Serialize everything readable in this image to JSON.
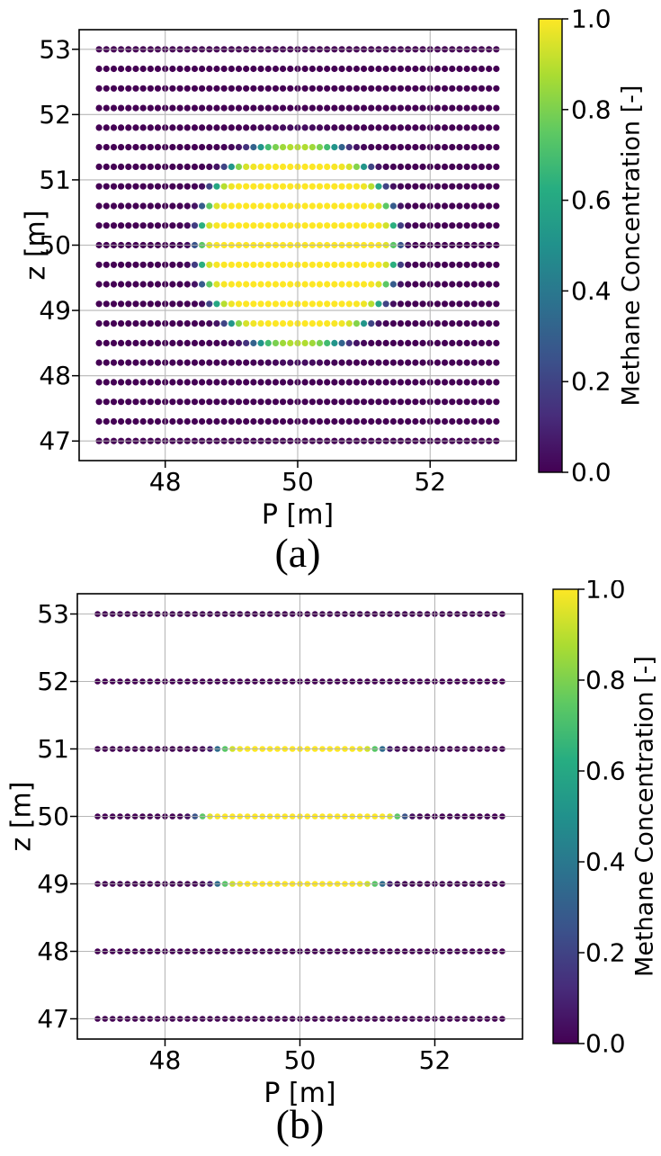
{
  "page": {
    "background": "#ffffff"
  },
  "colormap": {
    "name": "viridis",
    "stops": [
      {
        "t": 0.0,
        "color": "#440154"
      },
      {
        "t": 0.125,
        "color": "#472d7b"
      },
      {
        "t": 0.25,
        "color": "#3b528b"
      },
      {
        "t": 0.375,
        "color": "#2c728e"
      },
      {
        "t": 0.5,
        "color": "#21918c"
      },
      {
        "t": 0.625,
        "color": "#27ad81"
      },
      {
        "t": 0.75,
        "color": "#5ec962"
      },
      {
        "t": 0.875,
        "color": "#aadc32"
      },
      {
        "t": 1.0,
        "color": "#fde725"
      }
    ]
  },
  "chart_data": [
    {
      "id": "a",
      "type": "scatter",
      "caption": "(a)",
      "xlabel": "P [m]",
      "ylabel": "z [m]",
      "xlim": [
        46.7,
        53.3
      ],
      "ylim": [
        46.7,
        53.3
      ],
      "xtick_values": [
        48,
        50,
        52
      ],
      "xtick_labels": [
        "48",
        "50",
        "52"
      ],
      "ytick_values": [
        47,
        48,
        49,
        50,
        51,
        52,
        53
      ],
      "ytick_labels": [
        "47",
        "48",
        "49",
        "50",
        "51",
        "52",
        "53"
      ],
      "grid": true,
      "grid_color": "#b0b0b0",
      "rows_z": [
        47.0,
        47.3,
        47.6,
        47.9,
        48.2,
        48.5,
        48.8,
        49.1,
        49.4,
        49.7,
        50.0,
        50.3,
        50.6,
        50.9,
        51.2,
        51.5,
        51.8,
        52.1,
        52.4,
        52.7,
        53.0
      ],
      "sampling_grid": {
        "p_min": 47.0,
        "p_max": 53.0,
        "p_count": 55,
        "p_spacing": 0.111,
        "z_spacing": 0.3
      },
      "concentration_field": {
        "description": "Methane concentration = 1 inside an elliptical plume centred at (P=50, z=50), 0 outside, smooth tanh transition at the boundary",
        "center_p": 50.0,
        "center_z": 50.0,
        "radius_p": 1.5,
        "radius_z": 1.62,
        "edge_width": 0.07,
        "c_max": 1.0,
        "c_min": 0.0
      },
      "colorbar": {
        "label": "Methane Concentration [-]",
        "vmin": 0.0,
        "vmax": 1.0,
        "tick_values": [
          0.0,
          0.2,
          0.4,
          0.6,
          0.8,
          1.0
        ],
        "tick_labels": [
          "0.0",
          "0.2",
          "0.4",
          "0.6",
          "0.8",
          "1.0"
        ]
      }
    },
    {
      "id": "b",
      "type": "scatter",
      "caption": "(b)",
      "xlabel": "P [m]",
      "ylabel": "z [m]",
      "xlim": [
        46.7,
        53.3
      ],
      "ylim": [
        46.7,
        53.3
      ],
      "xtick_values": [
        48,
        50,
        52
      ],
      "xtick_labels": [
        "48",
        "50",
        "52"
      ],
      "ytick_values": [
        47,
        48,
        49,
        50,
        51,
        52,
        53
      ],
      "ytick_labels": [
        "47",
        "48",
        "49",
        "50",
        "51",
        "52",
        "53"
      ],
      "grid": true,
      "grid_color": "#b0b0b0",
      "rows_z": [
        47.0,
        48.0,
        49.0,
        50.0,
        51.0,
        52.0,
        53.0
      ],
      "sampling_grid": {
        "p_min": 47.0,
        "p_max": 53.0,
        "p_count": 55,
        "p_spacing": 0.111,
        "z_spacing": 1.0
      },
      "concentration_field": {
        "description": "Methane concentration = 1 inside an elliptical plume centred at (P=50, z=50), 0 outside, smooth tanh transition at the boundary",
        "center_p": 50.0,
        "center_z": 50.0,
        "radius_p": 1.5,
        "radius_z": 1.62,
        "edge_width": 0.07,
        "c_max": 1.0,
        "c_min": 0.0
      },
      "colorbar": {
        "label": "Methane Concentration [-]",
        "vmin": 0.0,
        "vmax": 1.0,
        "tick_values": [
          0.0,
          0.2,
          0.4,
          0.6,
          0.8,
          1.0
        ],
        "tick_labels": [
          "0.0",
          "0.2",
          "0.4",
          "0.6",
          "0.8",
          "1.0"
        ]
      }
    }
  ]
}
